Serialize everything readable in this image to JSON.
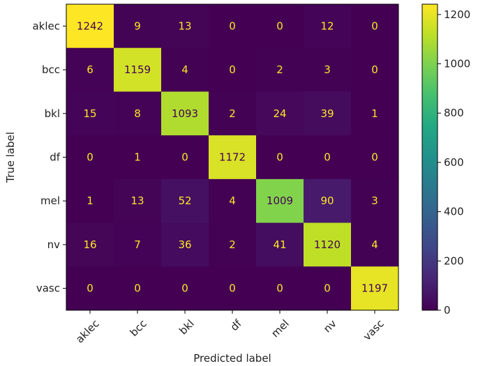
{
  "chart_data": {
    "type": "heatmap",
    "xlabel": "Predicted label",
    "ylabel": "True label",
    "x_categories": [
      "aklec",
      "bcc",
      "bkl",
      "df",
      "mel",
      "nv",
      "vasc"
    ],
    "y_categories": [
      "aklec",
      "bcc",
      "bkl",
      "df",
      "mel",
      "nv",
      "vasc"
    ],
    "values": [
      [
        1242,
        9,
        13,
        0,
        0,
        12,
        0
      ],
      [
        6,
        1159,
        4,
        0,
        2,
        3,
        0
      ],
      [
        15,
        8,
        1093,
        2,
        24,
        39,
        1
      ],
      [
        0,
        1,
        0,
        1172,
        0,
        0,
        0
      ],
      [
        1,
        13,
        52,
        4,
        1009,
        90,
        3
      ],
      [
        16,
        7,
        36,
        2,
        41,
        1120,
        4
      ],
      [
        0,
        0,
        0,
        0,
        0,
        0,
        1197
      ]
    ],
    "colorbar": {
      "min": 0,
      "max": 1242,
      "ticks": [
        0,
        200,
        400,
        600,
        800,
        1000,
        1200
      ],
      "colormap": "viridis"
    }
  }
}
